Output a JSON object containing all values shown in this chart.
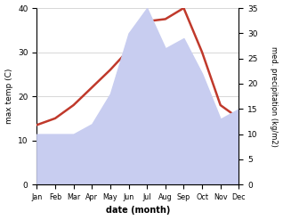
{
  "months": [
    "Jan",
    "Feb",
    "Mar",
    "Apr",
    "May",
    "Jun",
    "Jul",
    "Aug",
    "Sep",
    "Oct",
    "Nov",
    "Dec"
  ],
  "month_x": [
    0,
    1,
    2,
    3,
    4,
    5,
    6,
    7,
    8,
    9,
    10,
    11
  ],
  "temp": [
    13.5,
    15.0,
    18.0,
    22.0,
    26.0,
    30.5,
    37.0,
    37.5,
    40.0,
    30.0,
    18.0,
    15.0
  ],
  "precip": [
    10.0,
    10.0,
    10.0,
    12.0,
    18.0,
    30.0,
    35.0,
    27.0,
    29.0,
    22.0,
    13.0,
    15.0
  ],
  "temp_color": "#c0392b",
  "precip_fill_color": "#c8cdf0",
  "temp_ylim": [
    0,
    40
  ],
  "precip_ylim": [
    0,
    35
  ],
  "xlabel": "date (month)",
  "ylabel_left": "max temp (C)",
  "ylabel_right": "med. precipitation (kg/m2)",
  "background_color": "#ffffff",
  "grid_color": "#c8c8c8",
  "temp_yticks": [
    0,
    10,
    20,
    30,
    40
  ],
  "precip_yticks": [
    0,
    5,
    10,
    15,
    20,
    25,
    30,
    35
  ]
}
